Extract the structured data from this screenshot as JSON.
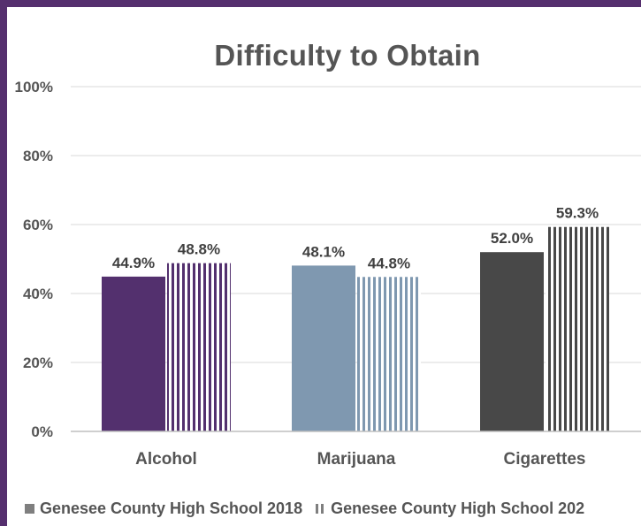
{
  "chart_data": {
    "type": "bar",
    "title": "Difficulty to Obtain",
    "categories": [
      "Alcohol",
      "Marijuana",
      "Cigarettes"
    ],
    "series": [
      {
        "name": "Genesee County High School 2018",
        "values": [
          44.9,
          48.1,
          52.0
        ],
        "labels": [
          "44.9%",
          "48.1%",
          "52.0%"
        ],
        "pattern": "solid"
      },
      {
        "name": "Genesee County High School 202",
        "values": [
          48.8,
          44.8,
          59.3
        ],
        "labels": [
          "48.8%",
          "44.8%",
          "59.3%"
        ],
        "pattern": "vertical-stripes"
      }
    ],
    "category_colors": [
      "#53306e",
      "#7f98b0",
      "#484848"
    ],
    "ylim": [
      0,
      100
    ],
    "yticks": [
      "0%",
      "20%",
      "40%",
      "60%",
      "80%",
      "100%"
    ],
    "grid": true,
    "legend_position": "bottom",
    "frame_color": "#552f6e"
  }
}
